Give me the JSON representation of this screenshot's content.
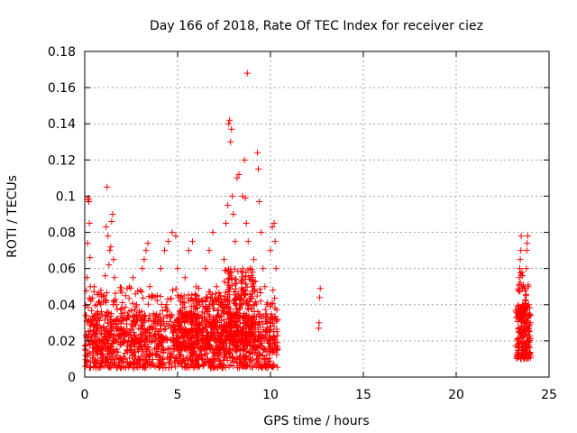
{
  "chart_data": {
    "type": "scatter",
    "title": "Day 166 of 2018, Rate Of TEC Index for receiver ciez",
    "xlabel": "GPS time / hours",
    "ylabel": "ROTI / TECUs",
    "xlim": [
      0,
      25
    ],
    "ylim": [
      0,
      0.18
    ],
    "xticks": [
      "0",
      "5",
      "10",
      "15",
      "20",
      "25"
    ],
    "yticks": [
      "0",
      "0.02",
      "0.04",
      "0.06",
      "0.08",
      "0.1",
      "0.12",
      "0.14",
      "0.16",
      "0.18"
    ],
    "grid": true,
    "marker": "plus",
    "color": "#ff0000",
    "series": [
      {
        "points": [
          [
            0.05,
            0.012
          ],
          [
            0.08,
            0.022
          ],
          [
            0.1,
            0.031
          ],
          [
            0.12,
            0.055
          ],
          [
            0.15,
            0.074
          ],
          [
            0.18,
            0.098
          ],
          [
            0.2,
            0.099
          ],
          [
            0.22,
            0.097
          ],
          [
            0.25,
            0.085
          ],
          [
            0.28,
            0.066
          ],
          [
            0.3,
            0.05
          ],
          [
            0.33,
            0.042
          ],
          [
            0.36,
            0.03
          ],
          [
            0.4,
            0.02
          ],
          [
            0.45,
            0.014
          ],
          [
            0.5,
            0.026
          ],
          [
            0.6,
            0.018
          ],
          [
            0.7,
            0.036
          ],
          [
            0.8,
            0.015
          ],
          [
            0.9,
            0.024
          ],
          [
            1.0,
            0.012
          ],
          [
            1.05,
            0.045
          ],
          [
            1.1,
            0.056
          ],
          [
            1.15,
            0.083
          ],
          [
            1.2,
            0.105
          ],
          [
            1.25,
            0.078
          ],
          [
            1.3,
            0.062
          ],
          [
            1.35,
            0.07
          ],
          [
            1.4,
            0.072
          ],
          [
            1.45,
            0.086
          ],
          [
            1.5,
            0.09
          ],
          [
            1.55,
            0.065
          ],
          [
            1.6,
            0.055
          ],
          [
            1.7,
            0.04
          ],
          [
            1.8,
            0.028
          ],
          [
            1.9,
            0.018
          ],
          [
            2.0,
            0.035
          ],
          [
            2.2,
            0.045
          ],
          [
            2.4,
            0.05
          ],
          [
            2.6,
            0.055
          ],
          [
            2.8,
            0.04
          ],
          [
            3.0,
            0.048
          ],
          [
            3.1,
            0.06
          ],
          [
            3.2,
            0.065
          ],
          [
            3.3,
            0.07
          ],
          [
            3.4,
            0.074
          ],
          [
            3.5,
            0.05
          ],
          [
            3.7,
            0.035
          ],
          [
            3.9,
            0.045
          ],
          [
            4.1,
            0.06
          ],
          [
            4.3,
            0.07
          ],
          [
            4.5,
            0.075
          ],
          [
            4.7,
            0.08
          ],
          [
            4.9,
            0.078
          ],
          [
            5.0,
            0.06
          ],
          [
            5.2,
            0.045
          ],
          [
            5.4,
            0.055
          ],
          [
            5.6,
            0.07
          ],
          [
            5.8,
            0.075
          ],
          [
            6.0,
            0.05
          ],
          [
            6.2,
            0.04
          ],
          [
            6.5,
            0.06
          ],
          [
            6.7,
            0.07
          ],
          [
            6.9,
            0.08
          ],
          [
            7.1,
            0.05
          ],
          [
            7.3,
            0.04
          ],
          [
            7.5,
            0.065
          ],
          [
            7.6,
            0.085
          ],
          [
            7.7,
            0.095
          ],
          [
            7.75,
            0.14
          ],
          [
            7.8,
            0.142
          ],
          [
            7.85,
            0.13
          ],
          [
            7.9,
            0.137
          ],
          [
            7.95,
            0.1
          ],
          [
            8.0,
            0.09
          ],
          [
            8.1,
            0.075
          ],
          [
            8.2,
            0.11
          ],
          [
            8.3,
            0.112
          ],
          [
            8.5,
            0.1
          ],
          [
            8.6,
            0.12
          ],
          [
            8.65,
            0.099
          ],
          [
            8.7,
            0.085
          ],
          [
            8.75,
            0.168
          ],
          [
            8.8,
            0.075
          ],
          [
            8.9,
            0.06
          ],
          [
            9.0,
            0.05
          ],
          [
            9.1,
            0.065
          ],
          [
            9.3,
            0.124
          ],
          [
            9.35,
            0.115
          ],
          [
            9.4,
            0.097
          ],
          [
            9.5,
            0.08
          ],
          [
            9.6,
            0.06
          ],
          [
            9.7,
            0.05
          ],
          [
            9.8,
            0.04
          ],
          [
            10.0,
            0.07
          ],
          [
            10.1,
            0.083
          ],
          [
            10.2,
            0.085
          ],
          [
            10.25,
            0.075
          ],
          [
            10.3,
            0.06
          ],
          [
            5.8,
            0.01
          ],
          [
            6.5,
            0.015
          ],
          [
            7.0,
            0.02
          ],
          [
            8.4,
            0.025
          ],
          [
            9.8,
            0.012
          ],
          [
            10.2,
            0.02
          ],
          [
            12.6,
            0.027
          ],
          [
            12.62,
            0.03
          ],
          [
            12.65,
            0.044
          ],
          [
            12.68,
            0.049
          ],
          [
            23.3,
            0.012
          ],
          [
            23.35,
            0.025
          ],
          [
            23.38,
            0.038
          ],
          [
            23.4,
            0.055
          ],
          [
            23.42,
            0.06
          ],
          [
            23.45,
            0.065
          ],
          [
            23.48,
            0.07
          ],
          [
            23.5,
            0.078
          ],
          [
            23.53,
            0.05
          ],
          [
            23.56,
            0.04
          ],
          [
            23.6,
            0.03
          ],
          [
            23.65,
            0.02
          ],
          [
            23.7,
            0.015
          ],
          [
            23.72,
            0.03
          ],
          [
            23.75,
            0.045
          ],
          [
            23.78,
            0.06
          ],
          [
            23.8,
            0.07
          ],
          [
            23.82,
            0.074
          ],
          [
            23.85,
            0.078
          ],
          [
            23.88,
            0.05
          ],
          [
            23.9,
            0.04
          ],
          [
            23.93,
            0.028
          ],
          [
            23.96,
            0.02
          ],
          [
            24.0,
            0.012
          ]
        ],
        "bands": [
          {
            "x": [
              0,
              10.4
            ],
            "y": [
              0.005,
              0.035
            ],
            "count": 1100
          },
          {
            "x": [
              0,
              10.4
            ],
            "y": [
              0.015,
              0.05
            ],
            "count": 500
          },
          {
            "x": [
              7.5,
              9.2
            ],
            "y": [
              0.02,
              0.06
            ],
            "count": 220
          },
          {
            "x": [
              5.0,
              7.5
            ],
            "y": [
              0.015,
              0.045
            ],
            "count": 200
          },
          {
            "x": [
              23.2,
              24.0
            ],
            "y": [
              0.01,
              0.04
            ],
            "count": 160
          },
          {
            "x": [
              23.3,
              23.9
            ],
            "y": [
              0.03,
              0.06
            ],
            "count": 40
          }
        ]
      }
    ]
  }
}
